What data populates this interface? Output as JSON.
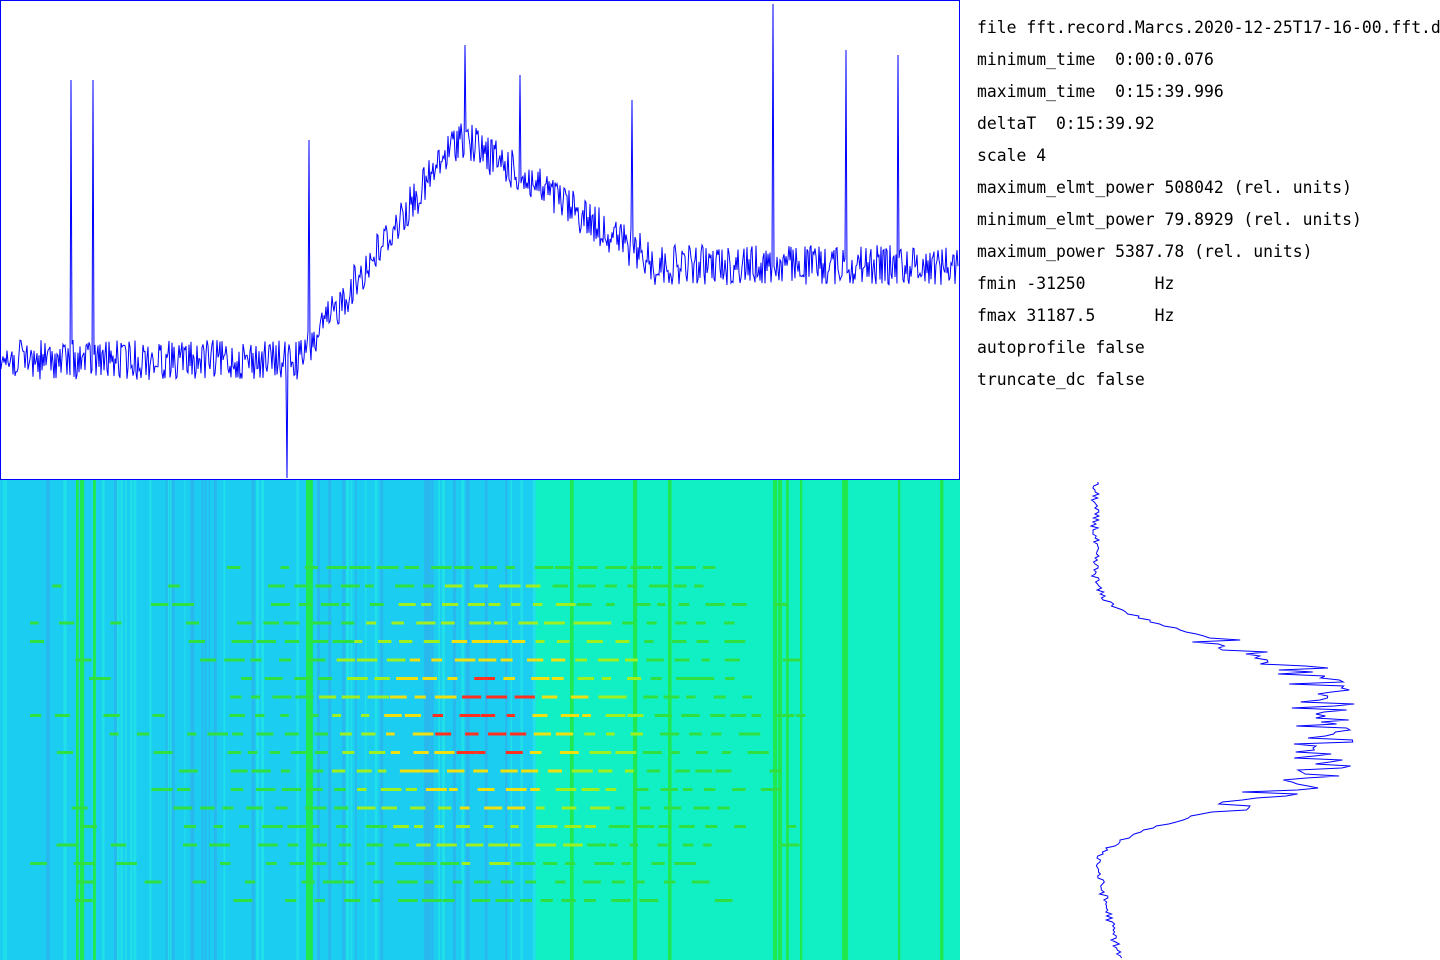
{
  "info": {
    "lines": [
      "file fft.record.Marcs.2020-12-25T17-16-00.fft.d",
      "minimum_time  0:00:0.076",
      "maximum_time  0:15:39.996",
      "deltaT  0:15:39.92",
      "scale 4",
      "maximum_elmt_power 508042 (rel. units)",
      "minimum_elmt_power 79.8929 (rel. units)",
      "maximum_power 5387.78 (rel. units)",
      "fmin -31250       Hz",
      "fmax 31187.5      Hz",
      "autoprofile false",
      "truncate_dc false"
    ]
  }
}
